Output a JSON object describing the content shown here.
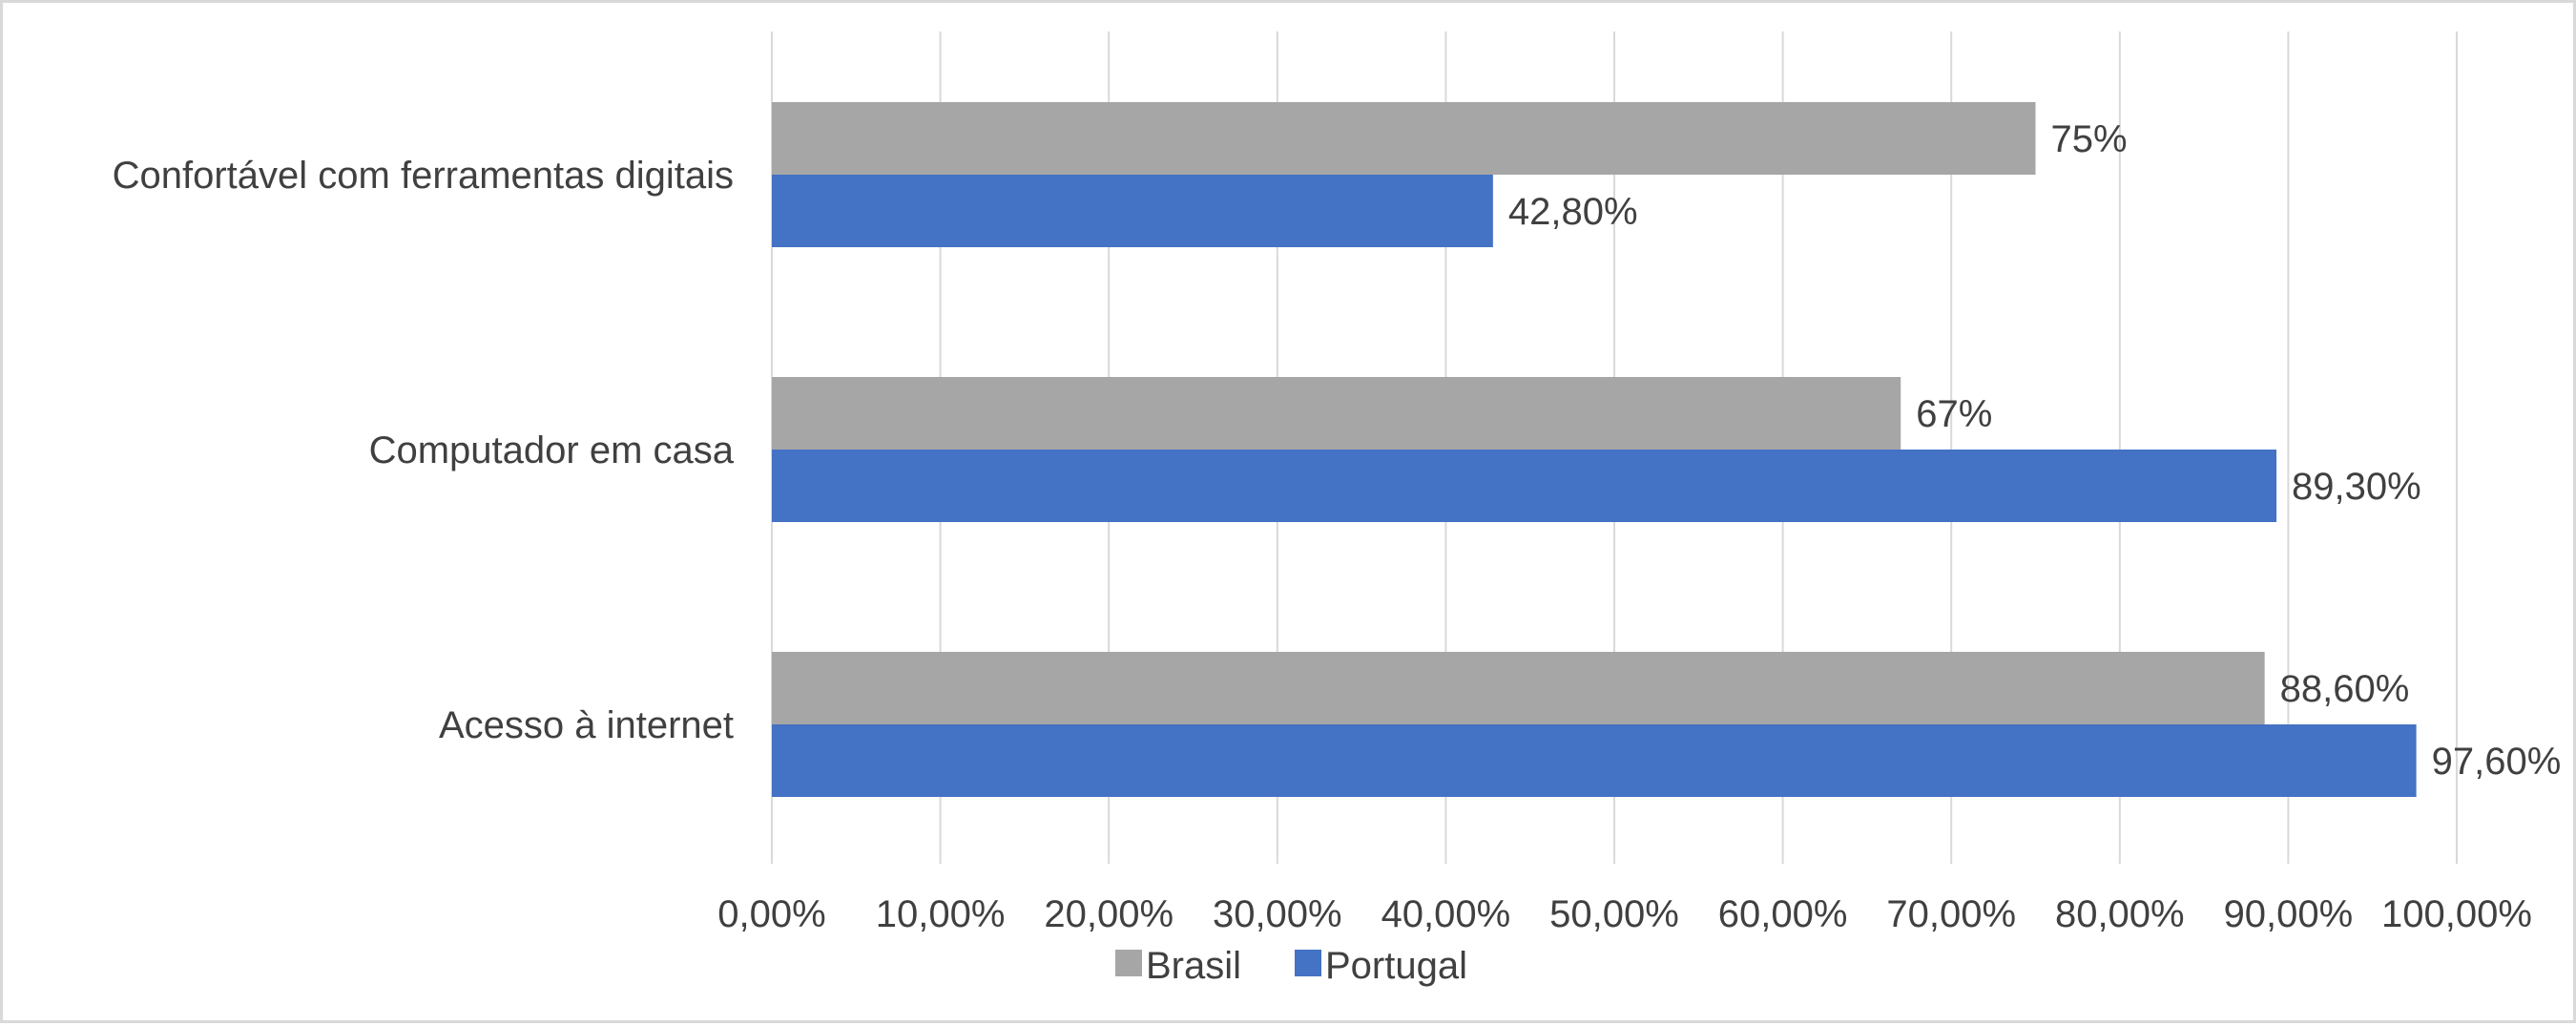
{
  "chart_data": {
    "type": "bar",
    "orientation": "horizontal",
    "categories": [
      "Confortável com ferramentas digitais",
      "Computador em casa",
      "Acesso à internet"
    ],
    "series": [
      {
        "name": "Brasil",
        "color": "#a6a6a6",
        "values": [
          75,
          67,
          88.6
        ],
        "labels": [
          "75%",
          "67%",
          "88,60%"
        ]
      },
      {
        "name": "Portugal",
        "color": "#4472c4",
        "values": [
          42.8,
          89.3,
          97.6
        ],
        "labels": [
          "42,80%",
          "89,30%",
          "97,60%"
        ]
      }
    ],
    "xlim": [
      0,
      100
    ],
    "x_ticks": [
      0,
      10,
      20,
      30,
      40,
      50,
      60,
      70,
      80,
      90,
      100
    ],
    "x_tick_labels": [
      "0,00%",
      "10,00%",
      "20,00%",
      "30,00%",
      "40,00%",
      "50,00%",
      "60,00%",
      "70,00%",
      "80,00%",
      "90,00%",
      "100,00%"
    ],
    "grid": true,
    "legend": {
      "position": "bottom",
      "entries": [
        "Brasil",
        "Portugal"
      ]
    },
    "title": "",
    "xlabel": "",
    "ylabel": ""
  }
}
